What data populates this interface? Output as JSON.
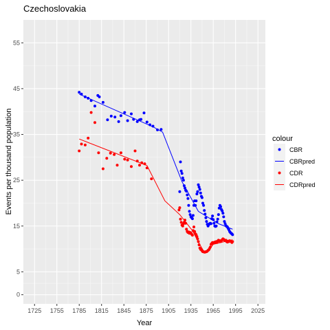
{
  "chart_data": {
    "type": "line",
    "title": "Czechoslovakia",
    "xlabel": "Year",
    "ylabel": "Events per thousand population",
    "xlim": [
      1710,
      2035
    ],
    "ylim": [
      -2,
      60
    ],
    "xticks": [
      1725,
      1755,
      1785,
      1815,
      1845,
      1875,
      1905,
      1935,
      1965,
      1995,
      2025
    ],
    "yticks": [
      0,
      5,
      15,
      25,
      35,
      45,
      55
    ],
    "grid": true,
    "legend": {
      "title": "colour",
      "position": "right",
      "entries": [
        {
          "label": "CBR",
          "kind": "point",
          "color": "#0000ff"
        },
        {
          "label": "CBRpred",
          "kind": "line",
          "color": "#0000ff"
        },
        {
          "label": "CDR",
          "kind": "point",
          "color": "#ff0000"
        },
        {
          "label": "CDRpred",
          "kind": "line",
          "color": "#ff0000"
        }
      ]
    },
    "series": [
      {
        "name": "CBR",
        "kind": "points",
        "color": "#0000ff",
        "points": [
          [
            1785,
            44.2
          ],
          [
            1788,
            43.8
          ],
          [
            1793,
            43.2
          ],
          [
            1797,
            42.9
          ],
          [
            1801,
            42.4
          ],
          [
            1806,
            41.2
          ],
          [
            1810,
            43.5
          ],
          [
            1812,
            43.2
          ],
          [
            1817,
            42.0
          ],
          [
            1823,
            38.2
          ],
          [
            1828,
            39.0
          ],
          [
            1833,
            38.8
          ],
          [
            1838,
            37.8
          ],
          [
            1841,
            39.1
          ],
          [
            1846,
            39.8
          ],
          [
            1850,
            38.0
          ],
          [
            1855,
            39.5
          ],
          [
            1858,
            38.3
          ],
          [
            1863,
            37.8
          ],
          [
            1866,
            38.2
          ],
          [
            1868,
            38.3
          ],
          [
            1872,
            39.7
          ],
          [
            1876,
            37.7
          ],
          [
            1880,
            37.1
          ],
          [
            1884,
            36.8
          ],
          [
            1890,
            36.0
          ],
          [
            1895,
            36.1
          ],
          [
            1920,
            22.5
          ],
          [
            1921,
            29.0
          ],
          [
            1922,
            27.0
          ],
          [
            1923,
            26.5
          ],
          [
            1924,
            25.5
          ],
          [
            1925,
            25.0
          ],
          [
            1926,
            23.8
          ],
          [
            1927,
            23.3
          ],
          [
            1928,
            22.8
          ],
          [
            1929,
            22.6
          ],
          [
            1930,
            21.8
          ],
          [
            1931,
            21.0
          ],
          [
            1932,
            19.5
          ],
          [
            1933,
            18.2
          ],
          [
            1934,
            17.5
          ],
          [
            1935,
            17.0
          ],
          [
            1936,
            16.8
          ],
          [
            1937,
            16.6
          ],
          [
            1938,
            17.3
          ],
          [
            1939,
            19.5
          ],
          [
            1940,
            20.5
          ],
          [
            1941,
            19.5
          ],
          [
            1942,
            20.5
          ],
          [
            1943,
            22.0
          ],
          [
            1944,
            22.5
          ],
          [
            1945,
            24.0
          ],
          [
            1946,
            23.5
          ],
          [
            1947,
            23.0
          ],
          [
            1948,
            22.2
          ],
          [
            1949,
            21.5
          ],
          [
            1950,
            21.2
          ],
          [
            1951,
            20.0
          ],
          [
            1952,
            19.5
          ],
          [
            1953,
            18.4
          ],
          [
            1954,
            17.6
          ],
          [
            1955,
            16.8
          ],
          [
            1956,
            16.0
          ],
          [
            1957,
            15.4
          ],
          [
            1958,
            15.0
          ],
          [
            1959,
            15.3
          ],
          [
            1960,
            15.5
          ],
          [
            1961,
            15.6
          ],
          [
            1962,
            15.5
          ],
          [
            1963,
            16.6
          ],
          [
            1964,
            17.2
          ],
          [
            1965,
            16.4
          ],
          [
            1966,
            15.6
          ],
          [
            1967,
            15.0
          ],
          [
            1968,
            14.9
          ],
          [
            1969,
            15.0
          ],
          [
            1970,
            15.9
          ],
          [
            1971,
            16.5
          ],
          [
            1972,
            17.5
          ],
          [
            1973,
            18.9
          ],
          [
            1974,
            19.5
          ],
          [
            1975,
            19.2
          ],
          [
            1976,
            18.6
          ],
          [
            1977,
            18.3
          ],
          [
            1978,
            17.8
          ],
          [
            1979,
            17.0
          ],
          [
            1980,
            16.0
          ],
          [
            1981,
            15.5
          ],
          [
            1982,
            15.1
          ],
          [
            1983,
            14.9
          ],
          [
            1984,
            14.8
          ],
          [
            1985,
            14.5
          ],
          [
            1986,
            14.2
          ],
          [
            1987,
            13.8
          ],
          [
            1988,
            13.6
          ],
          [
            1989,
            13.4
          ],
          [
            1990,
            13.3
          ],
          [
            1991,
            13.1
          ]
        ]
      },
      {
        "name": "CBRpred",
        "kind": "line",
        "color": "#0000ff",
        "points": [
          [
            1785,
            43.8
          ],
          [
            1885,
            36.6
          ],
          [
            1897,
            35.5
          ],
          [
            1923,
            24.7
          ],
          [
            1945,
            18.2
          ],
          [
            1972,
            15.5
          ],
          [
            1991,
            14.3
          ]
        ]
      },
      {
        "name": "CDR",
        "kind": "points",
        "color": "#ff0000",
        "points": [
          [
            1785,
            31.4
          ],
          [
            1788,
            32.9
          ],
          [
            1793,
            32.7
          ],
          [
            1797,
            34.2
          ],
          [
            1801,
            39.8
          ],
          [
            1806,
            37.6
          ],
          [
            1811,
            31.0
          ],
          [
            1817,
            27.5
          ],
          [
            1822,
            29.8
          ],
          [
            1827,
            30.9
          ],
          [
            1832,
            30.6
          ],
          [
            1836,
            28.3
          ],
          [
            1841,
            31.0
          ],
          [
            1846,
            29.6
          ],
          [
            1850,
            29.4
          ],
          [
            1855,
            28.0
          ],
          [
            1860,
            31.4
          ],
          [
            1863,
            29.2
          ],
          [
            1866,
            28.3
          ],
          [
            1869,
            28.8
          ],
          [
            1873,
            28.6
          ],
          [
            1876,
            27.7
          ],
          [
            1882,
            25.3
          ],
          [
            1919,
            18.5
          ],
          [
            1920,
            19.0
          ],
          [
            1921,
            16.5
          ],
          [
            1922,
            15.8
          ],
          [
            1923,
            15.2
          ],
          [
            1924,
            15.0
          ],
          [
            1925,
            15.5
          ],
          [
            1926,
            15.8
          ],
          [
            1927,
            16.3
          ],
          [
            1928,
            15.6
          ],
          [
            1929,
            14.3
          ],
          [
            1930,
            13.8
          ],
          [
            1931,
            13.6
          ],
          [
            1932,
            13.7
          ],
          [
            1933,
            13.4
          ],
          [
            1934,
            13.6
          ],
          [
            1935,
            13.5
          ],
          [
            1936,
            13.2
          ],
          [
            1937,
            13.0
          ],
          [
            1938,
            14.0
          ],
          [
            1939,
            14.8
          ],
          [
            1940,
            13.8
          ],
          [
            1941,
            13.3
          ],
          [
            1942,
            13.1
          ],
          [
            1943,
            12.7
          ],
          [
            1944,
            12.2
          ],
          [
            1945,
            11.6
          ],
          [
            1946,
            10.9
          ],
          [
            1947,
            10.2
          ],
          [
            1948,
            9.9
          ],
          [
            1949,
            9.8
          ],
          [
            1950,
            9.6
          ],
          [
            1951,
            9.4
          ],
          [
            1952,
            9.4
          ],
          [
            1953,
            9.3
          ],
          [
            1954,
            9.3
          ],
          [
            1955,
            9.4
          ],
          [
            1956,
            9.4
          ],
          [
            1957,
            9.5
          ],
          [
            1958,
            9.7
          ],
          [
            1959,
            9.8
          ],
          [
            1960,
            10.1
          ],
          [
            1961,
            10.4
          ],
          [
            1962,
            11.0
          ],
          [
            1963,
            11.2
          ],
          [
            1964,
            11.4
          ],
          [
            1965,
            11.3
          ],
          [
            1966,
            11.4
          ],
          [
            1967,
            11.5
          ],
          [
            1968,
            11.4
          ],
          [
            1969,
            11.6
          ],
          [
            1970,
            11.4
          ],
          [
            1971,
            11.7
          ],
          [
            1972,
            11.9
          ],
          [
            1973,
            11.7
          ],
          [
            1974,
            11.8
          ],
          [
            1975,
            11.6
          ],
          [
            1976,
            11.8
          ],
          [
            1977,
            12.0
          ],
          [
            1978,
            12.2
          ],
          [
            1979,
            12.1
          ],
          [
            1980,
            11.9
          ],
          [
            1981,
            11.8
          ],
          [
            1982,
            11.9
          ],
          [
            1983,
            11.6
          ],
          [
            1984,
            11.5
          ],
          [
            1985,
            11.7
          ],
          [
            1986,
            11.6
          ],
          [
            1987,
            11.8
          ],
          [
            1988,
            11.7
          ],
          [
            1989,
            11.6
          ],
          [
            1990,
            11.4
          ],
          [
            1991,
            11.6
          ]
        ]
      },
      {
        "name": "CDRpred",
        "kind": "line",
        "color": "#ff0000",
        "points": [
          [
            1785,
            34.0
          ],
          [
            1876,
            28.2
          ],
          [
            1900,
            20.5
          ],
          [
            1920,
            17.5
          ],
          [
            1937,
            14.0
          ],
          [
            1945,
            11.5
          ],
          [
            1953,
            9.3
          ],
          [
            1958,
            9.5
          ],
          [
            1965,
            11.0
          ],
          [
            1991,
            12.0
          ]
        ]
      }
    ]
  }
}
